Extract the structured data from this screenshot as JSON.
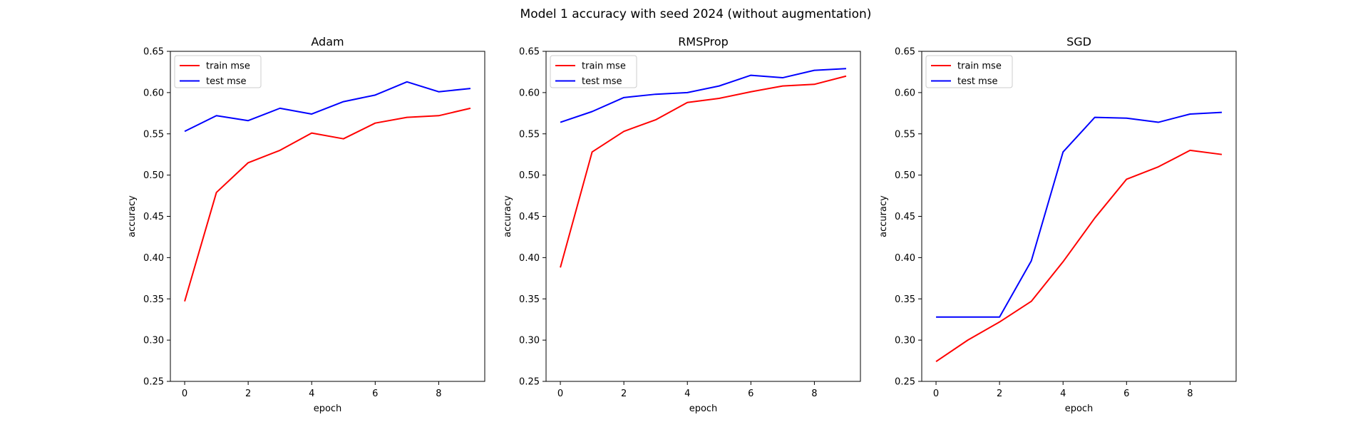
{
  "figure": {
    "suptitle": "Model 1 accuracy with seed 2024 (without augmentation)"
  },
  "chart_data": [
    {
      "type": "line",
      "title": "Adam",
      "xlabel": "epoch",
      "ylabel": "accuracy",
      "xlim": [
        -0.45,
        9.45
      ],
      "ylim": [
        0.25,
        0.65
      ],
      "xticks": [
        0,
        2,
        4,
        6,
        8
      ],
      "yticks": [
        0.25,
        0.3,
        0.35,
        0.4,
        0.45,
        0.5,
        0.55,
        0.6,
        0.65
      ],
      "legend": "upper-left",
      "x": [
        0,
        1,
        2,
        3,
        4,
        5,
        6,
        7,
        8,
        9
      ],
      "series": [
        {
          "name": "train mse",
          "color": "#ff0000",
          "values": [
            0.347,
            0.479,
            0.515,
            0.53,
            0.551,
            0.544,
            0.563,
            0.57,
            0.572,
            0.581
          ]
        },
        {
          "name": "test mse",
          "color": "#0000ff",
          "values": [
            0.553,
            0.572,
            0.566,
            0.581,
            0.574,
            0.589,
            0.597,
            0.613,
            0.601,
            0.605
          ]
        }
      ]
    },
    {
      "type": "line",
      "title": "RMSProp",
      "xlabel": "epoch",
      "ylabel": "accuracy",
      "xlim": [
        -0.45,
        9.45
      ],
      "ylim": [
        0.25,
        0.65
      ],
      "xticks": [
        0,
        2,
        4,
        6,
        8
      ],
      "yticks": [
        0.25,
        0.3,
        0.35,
        0.4,
        0.45,
        0.5,
        0.55,
        0.6,
        0.65
      ],
      "legend": "upper-left",
      "x": [
        0,
        1,
        2,
        3,
        4,
        5,
        6,
        7,
        8,
        9
      ],
      "series": [
        {
          "name": "train mse",
          "color": "#ff0000",
          "values": [
            0.388,
            0.528,
            0.553,
            0.567,
            0.588,
            0.593,
            0.601,
            0.608,
            0.61,
            0.62
          ]
        },
        {
          "name": "test mse",
          "color": "#0000ff",
          "values": [
            0.564,
            0.577,
            0.594,
            0.598,
            0.6,
            0.608,
            0.621,
            0.618,
            0.627,
            0.629
          ]
        }
      ]
    },
    {
      "type": "line",
      "title": "SGD",
      "xlabel": "epoch",
      "ylabel": "accuracy",
      "xlim": [
        -0.45,
        9.45
      ],
      "ylim": [
        0.25,
        0.65
      ],
      "xticks": [
        0,
        2,
        4,
        6,
        8
      ],
      "yticks": [
        0.25,
        0.3,
        0.35,
        0.4,
        0.45,
        0.5,
        0.55,
        0.6,
        0.65
      ],
      "legend": "upper-left",
      "x": [
        0,
        1,
        2,
        3,
        4,
        5,
        6,
        7,
        8,
        9
      ],
      "series": [
        {
          "name": "train mse",
          "color": "#ff0000",
          "values": [
            0.274,
            0.3,
            0.322,
            0.347,
            0.395,
            0.448,
            0.495,
            0.51,
            0.53,
            0.525
          ]
        },
        {
          "name": "test mse",
          "color": "#0000ff",
          "values": [
            0.328,
            0.328,
            0.328,
            0.396,
            0.528,
            0.57,
            0.569,
            0.564,
            0.574,
            0.576
          ]
        }
      ]
    }
  ]
}
